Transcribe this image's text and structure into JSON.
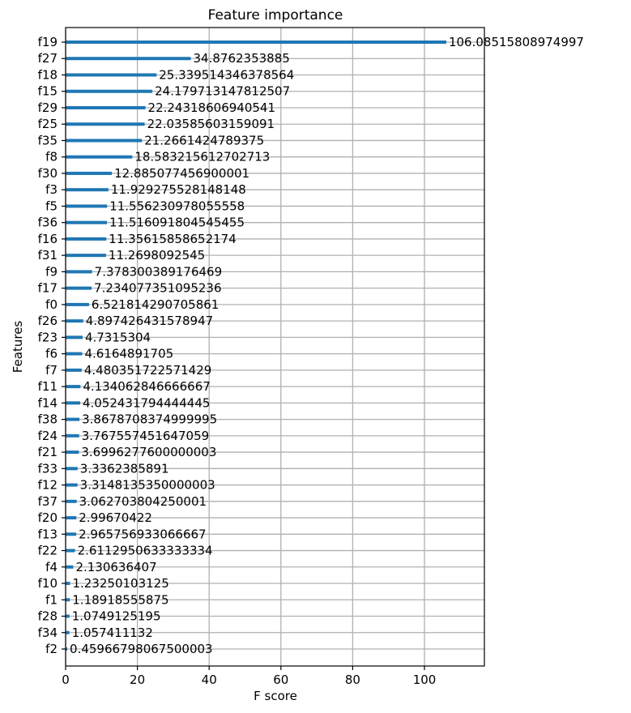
{
  "chart_data": {
    "type": "bar",
    "orientation": "horizontal",
    "title": "Feature importance",
    "xlabel": "F score",
    "ylabel": "Features",
    "xlim": [
      0,
      116.7
    ],
    "xticks": [
      0,
      20,
      40,
      60,
      80,
      100
    ],
    "grid": true,
    "bar_color": "#1f77b4",
    "categories": [
      "f19",
      "f27",
      "f18",
      "f15",
      "f29",
      "f25",
      "f35",
      "f8",
      "f30",
      "f3",
      "f5",
      "f36",
      "f16",
      "f31",
      "f9",
      "f17",
      "f0",
      "f26",
      "f23",
      "f6",
      "f7",
      "f11",
      "f14",
      "f38",
      "f24",
      "f21",
      "f33",
      "f12",
      "f37",
      "f20",
      "f13",
      "f22",
      "f4",
      "f10",
      "f1",
      "f28",
      "f34",
      "f2"
    ],
    "values": [
      106.08515808974997,
      34.8762353885,
      25.339514346378564,
      24.179713147812507,
      22.24318606940541,
      22.03585603159091,
      21.2661424789375,
      18.583215612702713,
      12.885077456900001,
      11.929275528148148,
      11.556230978055558,
      11.516091804545455,
      11.35615858652174,
      11.2698092545,
      7.378300389176469,
      7.234077351095236,
      6.521814290705861,
      4.897426431578947,
      4.7315304,
      4.6164891705,
      4.480351722571429,
      4.134062846666667,
      4.052431794444445,
      3.8678708374999995,
      3.767557451647059,
      3.6996277600000003,
      3.3362385891,
      3.3148135350000003,
      3.062703804250001,
      2.99670422,
      2.965756933066667,
      2.6112950633333334,
      2.130636407,
      1.23250103125,
      1.18918555875,
      1.0749125195,
      1.057411132,
      0.45966798067500003
    ],
    "value_labels": [
      "106.08515808974997",
      "34.8762353885",
      "25.339514346378564",
      "24.179713147812507",
      "22.24318606940541",
      "22.03585603159091",
      "21.2661424789375",
      "18.583215612702713",
      "12.885077456900001",
      "11.929275528148148",
      "11.556230978055558",
      "11.516091804545455",
      "11.35615858652174",
      "11.2698092545",
      "7.378300389176469",
      "7.234077351095236",
      "6.521814290705861",
      "4.897426431578947",
      "4.7315304",
      "4.6164891705",
      "4.480351722571429",
      "4.134062846666667",
      "4.052431794444445",
      "3.8678708374999995",
      "3.767557451647059",
      "3.6996277600000003",
      "3.3362385891",
      "3.3148135350000003",
      "3.062703804250001",
      "2.99670422",
      "2.965756933066667",
      "2.6112950633333334",
      "2.130636407",
      "1.23250103125",
      "1.18918555875",
      "1.0749125195",
      "1.057411132",
      "0.45966798067500003"
    ]
  }
}
